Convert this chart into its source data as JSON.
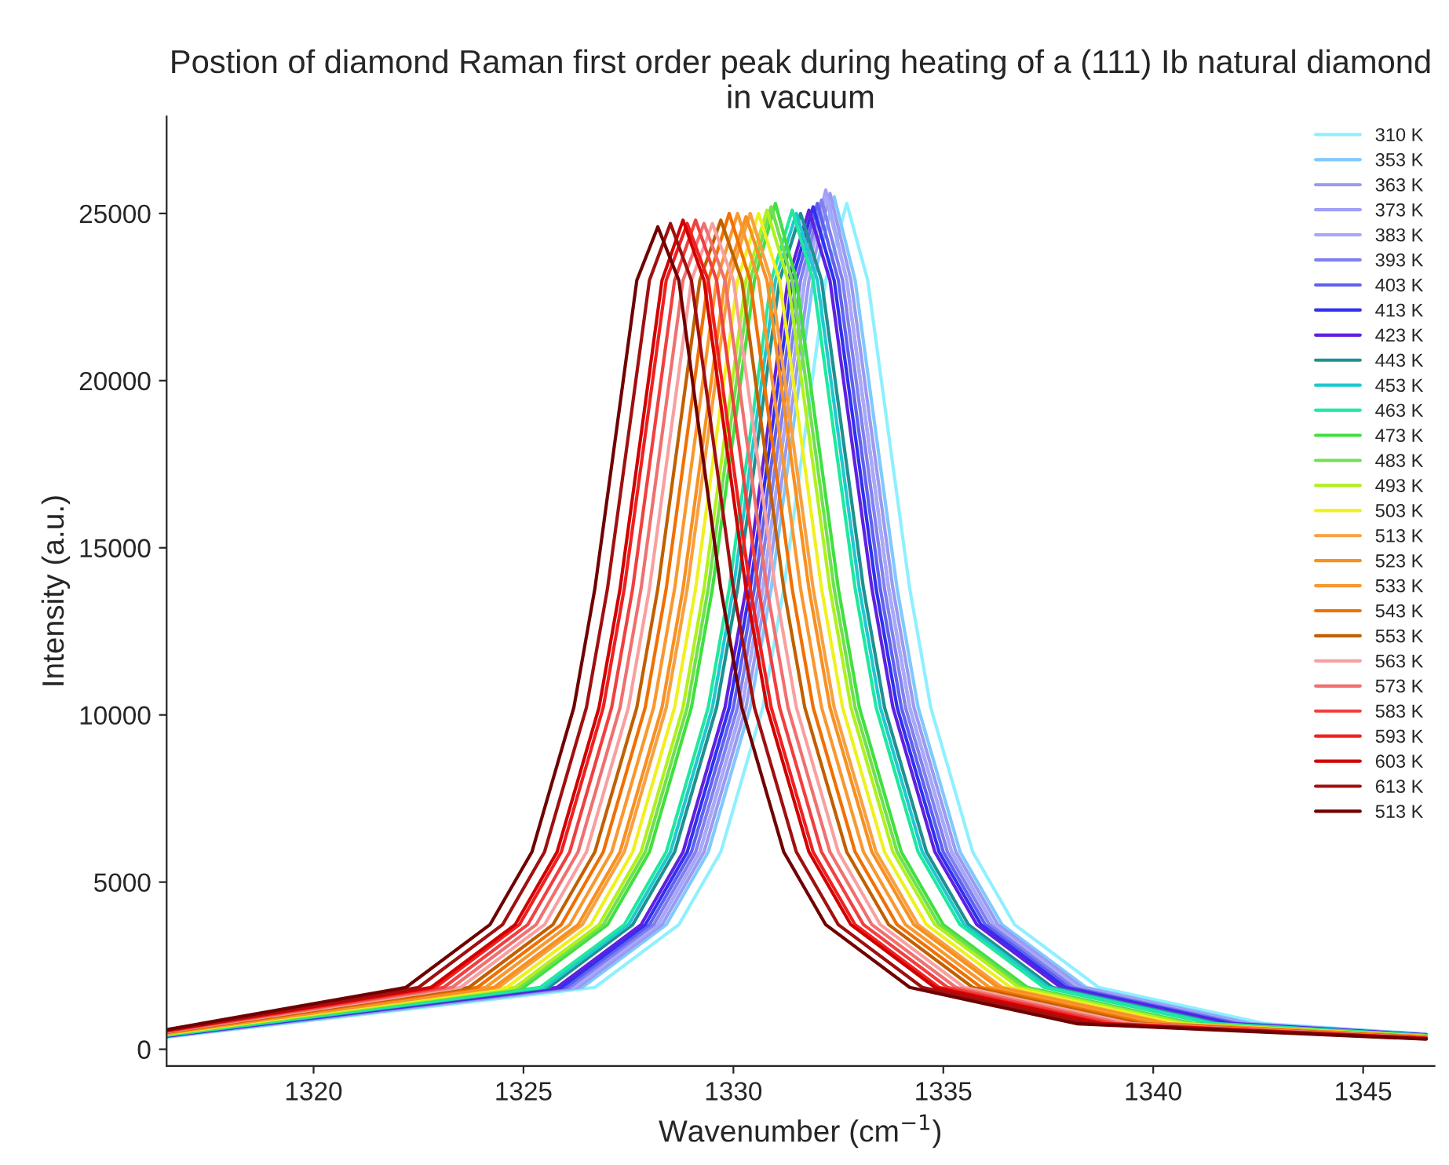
{
  "chart_data": {
    "type": "line",
    "title": "Postion of diamond Raman first order peak during heating of a (111) Ib natural diamond in vacuum",
    "xlabel": "Wavenumber (cm$^{−1}$)",
    "ylabel": "Intensity (a.u.)",
    "xlim": [
      1316.5,
      1346.7
    ],
    "xticks": [
      1320,
      1325,
      1330,
      1335,
      1340,
      1345
    ],
    "ylim": [
      -500,
      27900
    ],
    "yticks": [
      0,
      5000,
      10000,
      15000,
      20000,
      25000
    ],
    "grid": false,
    "legend": "top right",
    "marker": "none",
    "line_style": "solid",
    "series": [
      {
        "name": "310 K",
        "color": "#8ff0ff",
        "x": [
          1316.5,
          1326.7,
          1328.7,
          1329.7,
          1330.7,
          1331.2,
          1331.7,
          1332.2,
          1332.7,
          1333.2,
          1333.7,
          1334.2,
          1334.7,
          1335.7,
          1336.7,
          1338.7,
          1342.7,
          1346.5
        ],
        "values": [
          357,
          1850,
          3725,
          5900,
          10225,
          13775,
          18375,
          23000,
          25300,
          23000,
          18375,
          13775,
          10225,
          5900,
          3725,
          1850,
          760,
          455
        ]
      },
      {
        "name": "353 K",
        "color": "#80c8ff",
        "x": [
          1316.5,
          1326.4,
          1328.4,
          1329.4,
          1330.4,
          1330.9,
          1331.4,
          1331.9,
          1332.4,
          1332.9,
          1333.4,
          1333.9,
          1334.4,
          1335.4,
          1336.4,
          1338.4,
          1342.4,
          1346.5
        ],
        "values": [
          373,
          1850,
          3725,
          5900,
          10225,
          13775,
          18375,
          23000,
          25500,
          23000,
          18375,
          13775,
          10225,
          5900,
          3725,
          1850,
          760,
          445
        ]
      },
      {
        "name": "363 K",
        "color": "#9a9af0",
        "x": [
          1316.5,
          1326.3,
          1328.3,
          1329.3,
          1330.3,
          1330.8,
          1331.3,
          1331.8,
          1332.3,
          1332.8,
          1333.3,
          1333.8,
          1334.3,
          1335.3,
          1336.3,
          1338.3,
          1342.3,
          1346.5
        ],
        "values": [
          378,
          1850,
          3725,
          5900,
          10225,
          13775,
          18375,
          23000,
          25600,
          23000,
          18375,
          13775,
          10225,
          5900,
          3725,
          1850,
          760,
          442
        ]
      },
      {
        "name": "373 K",
        "color": "#a0a0f8",
        "x": [
          1316.5,
          1326.2,
          1328.2,
          1329.2,
          1330.2,
          1330.7,
          1331.2,
          1331.7,
          1332.2,
          1332.7,
          1333.2,
          1333.7,
          1334.2,
          1335.2,
          1336.2,
          1338.2,
          1342.2,
          1346.5
        ],
        "values": [
          383,
          1850,
          3725,
          5900,
          10225,
          13775,
          18375,
          23000,
          25700,
          23000,
          18375,
          13775,
          10225,
          5900,
          3725,
          1850,
          760,
          438
        ]
      },
      {
        "name": "383 K",
        "color": "#a8a8f8",
        "x": [
          1316.5,
          1326.2,
          1328.2,
          1329.2,
          1330.2,
          1330.7,
          1331.2,
          1331.7,
          1332.2,
          1332.7,
          1333.2,
          1333.7,
          1334.2,
          1335.2,
          1336.2,
          1338.2,
          1342.2,
          1346.5
        ],
        "values": [
          383,
          1850,
          3725,
          5900,
          10225,
          13775,
          18375,
          23000,
          25500,
          23000,
          18375,
          13775,
          10225,
          5900,
          3725,
          1850,
          760,
          438
        ]
      },
      {
        "name": "393 K",
        "color": "#8080f0",
        "x": [
          1316.5,
          1326.1,
          1328.1,
          1329.1,
          1330.1,
          1330.6,
          1331.1,
          1331.6,
          1332.1,
          1332.6,
          1333.1,
          1333.6,
          1334.1,
          1335.1,
          1336.1,
          1338.1,
          1342.1,
          1346.5
        ],
        "values": [
          388,
          1850,
          3725,
          5900,
          10225,
          13775,
          18375,
          23000,
          25400,
          23000,
          18375,
          13775,
          10225,
          5900,
          3725,
          1850,
          760,
          435
        ]
      },
      {
        "name": "403 K",
        "color": "#6060f0",
        "x": [
          1316.5,
          1326,
          1328,
          1329,
          1330,
          1330.5,
          1331,
          1331.5,
          1332,
          1332.5,
          1333,
          1333.5,
          1334,
          1335,
          1336,
          1338,
          1342,
          1346.5
        ],
        "values": [
          393,
          1850,
          3725,
          5900,
          10225,
          13775,
          18375,
          23000,
          25300,
          23000,
          18375,
          13775,
          10225,
          5900,
          3725,
          1850,
          760,
          431
        ]
      },
      {
        "name": "413 K",
        "color": "#3030f0",
        "x": [
          1316.5,
          1325.9,
          1327.9,
          1328.9,
          1329.9,
          1330.4,
          1330.9,
          1331.4,
          1331.9,
          1332.4,
          1332.9,
          1333.4,
          1333.9,
          1334.9,
          1335.9,
          1337.9,
          1341.9,
          1346.5
        ],
        "values": [
          399,
          1850,
          3725,
          5900,
          10225,
          13775,
          18375,
          23000,
          25200,
          23000,
          18375,
          13775,
          10225,
          5900,
          3725,
          1850,
          760,
          428
        ]
      },
      {
        "name": "423 K",
        "color": "#6020e0",
        "x": [
          1316.5,
          1325.8,
          1327.8,
          1328.8,
          1329.8,
          1330.3,
          1330.8,
          1331.3,
          1331.8,
          1332.3,
          1332.8,
          1333.3,
          1333.8,
          1334.8,
          1335.8,
          1337.8,
          1341.8,
          1346.5
        ],
        "values": [
          404,
          1850,
          3725,
          5900,
          10225,
          13775,
          18375,
          23000,
          25100,
          23000,
          18375,
          13775,
          10225,
          5900,
          3725,
          1850,
          760,
          425
        ]
      },
      {
        "name": "443 K",
        "color": "#209090",
        "x": [
          1316.5,
          1325.6,
          1327.6,
          1328.6,
          1329.6,
          1330.1,
          1330.6,
          1331.1,
          1331.6,
          1332.1,
          1332.6,
          1333.1,
          1333.6,
          1334.6,
          1335.6,
          1337.6,
          1341.6,
          1346.5
        ],
        "values": [
          414,
          1850,
          3725,
          5900,
          10225,
          13775,
          18375,
          23000,
          25000,
          23000,
          18375,
          13775,
          10225,
          5900,
          3725,
          1850,
          760,
          418
        ]
      },
      {
        "name": "453 K",
        "color": "#20c8d0",
        "x": [
          1316.5,
          1325.5,
          1327.5,
          1328.5,
          1329.5,
          1330,
          1330.5,
          1331,
          1331.5,
          1332,
          1332.5,
          1333,
          1333.5,
          1334.5,
          1335.5,
          1337.5,
          1341.5,
          1346.5
        ],
        "values": [
          419,
          1850,
          3725,
          5900,
          10225,
          13775,
          18375,
          23000,
          25000,
          23000,
          18375,
          13775,
          10225,
          5900,
          3725,
          1850,
          760,
          415
        ]
      },
      {
        "name": "463 K",
        "color": "#20e8a0",
        "x": [
          1316.5,
          1325.4,
          1327.4,
          1328.4,
          1329.4,
          1329.9,
          1330.4,
          1330.9,
          1331.4,
          1331.9,
          1332.4,
          1332.9,
          1333.4,
          1334.4,
          1335.4,
          1337.4,
          1341.4,
          1346.5
        ],
        "values": [
          424,
          1850,
          3725,
          5900,
          10225,
          13775,
          18375,
          23000,
          25100,
          23000,
          18375,
          13775,
          10225,
          5900,
          3725,
          1850,
          760,
          411
        ]
      },
      {
        "name": "473 K",
        "color": "#40e040",
        "x": [
          1316.5,
          1325,
          1327,
          1328,
          1329,
          1329.5,
          1330,
          1330.5,
          1331,
          1331.5,
          1332,
          1332.5,
          1333,
          1334,
          1335,
          1337,
          1341,
          1346.5
        ],
        "values": [
          445,
          1850,
          3725,
          5900,
          10225,
          13775,
          18375,
          23000,
          25300,
          23000,
          18375,
          13775,
          10225,
          5900,
          3725,
          1850,
          760,
          398
        ]
      },
      {
        "name": "483 K",
        "color": "#70e050",
        "x": [
          1316.5,
          1324.9,
          1326.9,
          1327.9,
          1328.9,
          1329.4,
          1329.9,
          1330.4,
          1330.9,
          1331.4,
          1331.9,
          1332.4,
          1332.9,
          1333.9,
          1334.9,
          1336.9,
          1340.9,
          1346.5
        ],
        "values": [
          450,
          1850,
          3725,
          5900,
          10225,
          13775,
          18375,
          23000,
          25200,
          23000,
          18375,
          13775,
          10225,
          5900,
          3725,
          1850,
          760,
          394
        ]
      },
      {
        "name": "493 K",
        "color": "#b0f020",
        "x": [
          1316.5,
          1324.8,
          1326.8,
          1327.8,
          1328.8,
          1329.3,
          1329.8,
          1330.3,
          1330.8,
          1331.3,
          1331.8,
          1332.3,
          1332.8,
          1333.8,
          1334.8,
          1336.8,
          1340.8,
          1346.5
        ],
        "values": [
          455,
          1850,
          3725,
          5900,
          10225,
          13775,
          18375,
          23000,
          25100,
          23000,
          18375,
          13775,
          10225,
          5900,
          3725,
          1850,
          760,
          391
        ]
      },
      {
        "name": "503 K",
        "color": "#f0f020",
        "x": [
          1316.5,
          1324.6,
          1326.6,
          1327.6,
          1328.6,
          1329.1,
          1329.6,
          1330.1,
          1330.6,
          1331.1,
          1331.6,
          1332.1,
          1332.6,
          1333.6,
          1334.6,
          1336.6,
          1340.6,
          1346.5
        ],
        "values": [
          466,
          1850,
          3725,
          5900,
          10225,
          13775,
          18375,
          23000,
          25000,
          23000,
          18375,
          13775,
          10225,
          5900,
          3725,
          1850,
          760,
          384
        ]
      },
      {
        "name": "513 K",
        "color": "#f8a040",
        "x": [
          1316.5,
          1324.4,
          1326.4,
          1327.4,
          1328.4,
          1328.9,
          1329.4,
          1329.9,
          1330.4,
          1330.9,
          1331.4,
          1331.9,
          1332.4,
          1333.4,
          1334.4,
          1336.4,
          1340.4,
          1346.5
        ],
        "values": [
          476,
          1850,
          3725,
          5900,
          10225,
          13775,
          18375,
          23000,
          25000,
          23000,
          18375,
          13775,
          10225,
          5900,
          3725,
          1850,
          760,
          377
        ]
      },
      {
        "name": "523 K",
        "color": "#f89020",
        "x": [
          1316.5,
          1324.3,
          1326.3,
          1327.3,
          1328.3,
          1328.8,
          1329.3,
          1329.8,
          1330.3,
          1330.8,
          1331.3,
          1331.8,
          1332.3,
          1333.3,
          1334.3,
          1336.3,
          1340.3,
          1346.5
        ],
        "values": [
          481,
          1850,
          3725,
          5900,
          10225,
          13775,
          18375,
          23000,
          24900,
          23000,
          18375,
          13775,
          10225,
          5900,
          3725,
          1850,
          760,
          374
        ]
      },
      {
        "name": "533 K",
        "color": "#f89830",
        "x": [
          1316.5,
          1324.1,
          1326.1,
          1327.1,
          1328.1,
          1328.6,
          1329.1,
          1329.6,
          1330.1,
          1330.6,
          1331.1,
          1331.6,
          1332.1,
          1333.1,
          1334.1,
          1336.1,
          1340.1,
          1346.5
        ],
        "values": [
          492,
          1850,
          3725,
          5900,
          10225,
          13775,
          18375,
          23000,
          25000,
          23000,
          18375,
          13775,
          10225,
          5900,
          3725,
          1850,
          760,
          367
        ]
      },
      {
        "name": "543 K",
        "color": "#f07000",
        "x": [
          1316.5,
          1323.9,
          1325.9,
          1326.9,
          1327.9,
          1328.4,
          1328.9,
          1329.4,
          1329.9,
          1330.4,
          1330.9,
          1331.4,
          1331.9,
          1332.9,
          1333.9,
          1335.9,
          1339.9,
          1346.5
        ],
        "values": [
          502,
          1850,
          3725,
          5900,
          10225,
          13775,
          18375,
          23000,
          25000,
          23000,
          18375,
          13775,
          10225,
          5900,
          3725,
          1850,
          760,
          360
        ]
      },
      {
        "name": "553 K",
        "color": "#c06000",
        "x": [
          1316.5,
          1323.7,
          1325.7,
          1326.7,
          1327.7,
          1328.2,
          1328.7,
          1329.2,
          1329.7,
          1330.2,
          1330.7,
          1331.2,
          1331.7,
          1332.7,
          1333.7,
          1335.7,
          1339.7,
          1346.5
        ],
        "values": [
          512,
          1850,
          3725,
          5900,
          10225,
          13775,
          18375,
          23000,
          24800,
          23000,
          18375,
          13775,
          10225,
          5900,
          3725,
          1850,
          760,
          354
        ]
      },
      {
        "name": "563 K",
        "color": "#f8a0a0",
        "x": [
          1316.5,
          1323.5,
          1325.5,
          1326.5,
          1327.5,
          1328,
          1328.5,
          1329,
          1329.5,
          1330,
          1330.5,
          1331,
          1331.5,
          1332.5,
          1333.5,
          1335.5,
          1339.5,
          1346.5
        ],
        "values": [
          523,
          1850,
          3725,
          5900,
          10225,
          13775,
          18375,
          23000,
          24700,
          23000,
          18375,
          13775,
          10225,
          5900,
          3725,
          1850,
          760,
          347
        ]
      },
      {
        "name": "573 K",
        "color": "#f07070",
        "x": [
          1316.5,
          1323.3,
          1325.3,
          1326.3,
          1327.3,
          1327.8,
          1328.3,
          1328.8,
          1329.3,
          1329.8,
          1330.3,
          1330.8,
          1331.3,
          1332.3,
          1333.3,
          1335.3,
          1339.3,
          1346.5
        ],
        "values": [
          533,
          1850,
          3725,
          5900,
          10225,
          13775,
          18375,
          23000,
          24700,
          23000,
          18375,
          13775,
          10225,
          5900,
          3725,
          1850,
          760,
          340
        ]
      },
      {
        "name": "583 K",
        "color": "#f04040",
        "x": [
          1316.5,
          1323.1,
          1325.1,
          1326.1,
          1327.1,
          1327.6,
          1328.1,
          1328.6,
          1329.1,
          1329.6,
          1330.1,
          1330.6,
          1331.1,
          1332.1,
          1333.1,
          1335.1,
          1339.1,
          1346.5
        ],
        "values": [
          543,
          1850,
          3725,
          5900,
          10225,
          13775,
          18375,
          23000,
          24800,
          23000,
          18375,
          13775,
          10225,
          5900,
          3725,
          1850,
          760,
          333
        ]
      },
      {
        "name": "593 K",
        "color": "#f02020",
        "x": [
          1316.5,
          1322.9,
          1324.9,
          1325.9,
          1326.9,
          1327.4,
          1327.9,
          1328.4,
          1328.9,
          1329.4,
          1329.9,
          1330.4,
          1330.9,
          1331.9,
          1332.9,
          1334.9,
          1338.9,
          1346.5
        ],
        "values": [
          554,
          1850,
          3725,
          5900,
          10225,
          13775,
          18375,
          23000,
          24700,
          23000,
          18375,
          13775,
          10225,
          5900,
          3725,
          1850,
          760,
          327
        ]
      },
      {
        "name": "603 K",
        "color": "#d00000",
        "x": [
          1316.5,
          1322.8,
          1324.8,
          1325.8,
          1326.8,
          1327.3,
          1327.8,
          1328.3,
          1328.8,
          1329.3,
          1329.8,
          1330.3,
          1330.8,
          1331.8,
          1332.8,
          1334.8,
          1338.8,
          1346.5
        ],
        "values": [
          559,
          1850,
          3725,
          5900,
          10225,
          13775,
          18375,
          23000,
          24800,
          23000,
          18375,
          13775,
          10225,
          5900,
          3725,
          1850,
          760,
          323
        ]
      },
      {
        "name": "613 K",
        "color": "#a01010",
        "x": [
          1316.5,
          1322.5,
          1324.5,
          1325.5,
          1326.5,
          1327,
          1327.5,
          1328,
          1328.5,
          1329,
          1329.5,
          1330,
          1330.5,
          1331.5,
          1332.5,
          1334.5,
          1338.5,
          1346.5
        ],
        "values": [
          574,
          1850,
          3725,
          5900,
          10225,
          13775,
          18375,
          23000,
          24700,
          23000,
          18375,
          13775,
          10225,
          5900,
          3725,
          1850,
          760,
          313
        ]
      },
      {
        "name": "513 K",
        "color": "#700000",
        "x": [
          1316.5,
          1322.2,
          1324.2,
          1325.2,
          1326.2,
          1326.7,
          1327.2,
          1327.7,
          1328.2,
          1328.7,
          1329.2,
          1329.7,
          1330.2,
          1331.2,
          1332.2,
          1334.2,
          1338.2,
          1346.5
        ],
        "values": [
          590,
          1850,
          3725,
          5900,
          10225,
          13775,
          18375,
          23000,
          24600,
          23000,
          18375,
          13775,
          10225,
          5900,
          3725,
          1850,
          760,
          303
        ]
      }
    ]
  }
}
